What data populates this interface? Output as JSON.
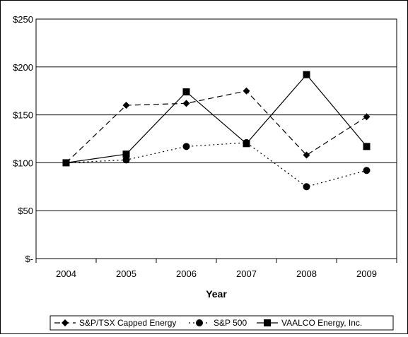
{
  "chart_data": {
    "type": "line",
    "categories": [
      "2004",
      "2005",
      "2006",
      "2007",
      "2008",
      "2009"
    ],
    "series": [
      {
        "name": "S&P/TSX Capped Energy",
        "values": [
          100,
          160,
          162,
          175,
          108,
          148
        ],
        "marker": "diamond",
        "dash": "dashed"
      },
      {
        "name": "S&P 500",
        "values": [
          100,
          103,
          117,
          121,
          75,
          92
        ],
        "marker": "circle",
        "dash": "dotted"
      },
      {
        "name": "VAALCO Energy, Inc.",
        "values": [
          100,
          109,
          174,
          120,
          192,
          117
        ],
        "marker": "square",
        "dash": "solid"
      }
    ],
    "xlabel": "Year",
    "ylabel": "",
    "ylim": [
      0,
      250
    ],
    "yticks": [
      {
        "value": 0,
        "label": "$-"
      },
      {
        "value": 50,
        "label": "$50"
      },
      {
        "value": 100,
        "label": "$100"
      },
      {
        "value": 150,
        "label": "$150"
      },
      {
        "value": 200,
        "label": "$200"
      },
      {
        "value": 250,
        "label": "$250"
      }
    ],
    "grid": "horizontal",
    "legend": "bottom",
    "line_color": "#000000"
  }
}
